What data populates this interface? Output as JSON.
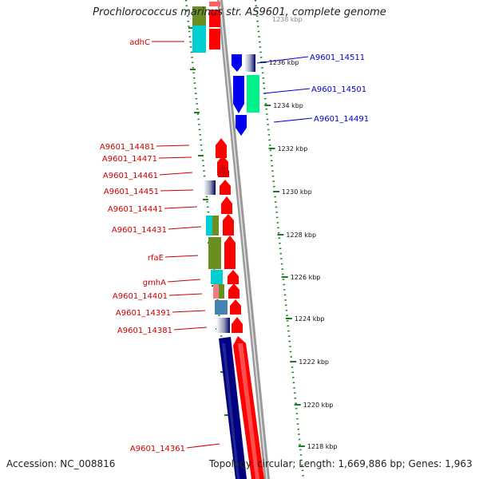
{
  "title": "Prochlorococcus marinus str. AS9601, complete genome",
  "accession": "Accession: NC_008816",
  "topology": "Topology: circular; Length: 1,669,886 bp; Genes: 1,963",
  "colors": {
    "forward": "#ff0000",
    "reverse": "#0000ff",
    "reverse_dark": "#000080",
    "backbone": "#9a9a9a",
    "tick": "#1e7d1e",
    "left_label": "#cc0000",
    "right_label": "#0000cc"
  },
  "scale_labels": [
    "1236 kbp",
    "1234 kbp",
    "1232 kbp",
    "1230 kbp",
    "1228 kbp",
    "1226 kbp",
    "1224 kbp",
    "1222 kbp",
    "1220 kbp",
    "1218 kbp"
  ],
  "partial_top_label": "1238 kbp",
  "left_genes": [
    "adhC",
    "A9601_14481",
    "A9601_14471",
    "A9601_14461",
    "A9601_14451",
    "A9601_14441",
    "A9601_14431",
    "rfaE",
    "gmhA",
    "A9601_14401",
    "A9601_14391",
    "A9601_14381",
    "A9601_14361"
  ],
  "right_genes": [
    "A9601_14511",
    "A9601_14501",
    "A9601_14491"
  ]
}
